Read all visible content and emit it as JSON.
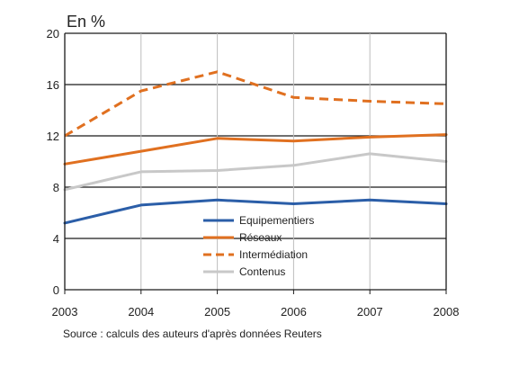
{
  "chart_data": {
    "type": "line",
    "x": [
      "2003",
      "2004",
      "2005",
      "2006",
      "2007",
      "2008"
    ],
    "y_unit_label": "En %",
    "ylim": [
      0,
      20
    ],
    "yticks": [
      "0",
      "4",
      "8",
      "12",
      "16",
      "20"
    ],
    "grid": true,
    "legend_position": "bottom-center",
    "series": [
      {
        "name": "Equipementiers",
        "values": [
          5.2,
          6.6,
          7.0,
          6.7,
          7.0,
          6.7
        ],
        "color": "#2b5ea8",
        "style": "solid"
      },
      {
        "name": "Réseaux",
        "values": [
          9.8,
          10.8,
          11.8,
          11.6,
          11.9,
          12.1
        ],
        "color": "#e07020",
        "style": "solid"
      },
      {
        "name": "Intermédiation",
        "values": [
          12.0,
          15.5,
          17.0,
          15.0,
          14.7,
          14.5
        ],
        "color": "#e07020",
        "style": "dashed"
      },
      {
        "name": "Contenus",
        "values": [
          7.8,
          9.2,
          9.3,
          9.7,
          10.6,
          10.0
        ],
        "color": "#c8c8c8",
        "style": "solid"
      }
    ]
  },
  "source": "Source : calculs des auteurs d'après données Reuters"
}
